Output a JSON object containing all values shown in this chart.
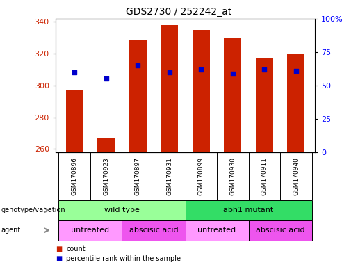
{
  "title": "GDS2730 / 252242_at",
  "samples": [
    "GSM170896",
    "GSM170923",
    "GSM170897",
    "GSM170931",
    "GSM170899",
    "GSM170930",
    "GSM170911",
    "GSM170940"
  ],
  "count_values": [
    297,
    267,
    329,
    338,
    335,
    330,
    317,
    320
  ],
  "percentile_values": [
    60,
    55,
    65,
    60,
    62,
    59,
    62,
    61
  ],
  "y_min": 258,
  "y_max": 342,
  "y_ticks": [
    260,
    280,
    300,
    320,
    340
  ],
  "y2_ticks": [
    0,
    25,
    50,
    75,
    100
  ],
  "bar_color": "#CC2200",
  "dot_color": "#0000CC",
  "genotype_groups": [
    {
      "label": "wild type",
      "start": 0,
      "end": 3,
      "color": "#99FF99"
    },
    {
      "label": "abh1 mutant",
      "start": 4,
      "end": 7,
      "color": "#33DD66"
    }
  ],
  "agent_groups": [
    {
      "label": "untreated",
      "start": 0,
      "end": 1,
      "color": "#FF99FF"
    },
    {
      "label": "abscisic acid",
      "start": 2,
      "end": 3,
      "color": "#EE55EE"
    },
    {
      "label": "untreated",
      "start": 4,
      "end": 5,
      "color": "#FF99FF"
    },
    {
      "label": "abscisic acid",
      "start": 6,
      "end": 7,
      "color": "#EE55EE"
    }
  ],
  "legend_count_color": "#CC2200",
  "legend_dot_color": "#0000CC",
  "bar_width": 0.55,
  "background_color": "#ffffff",
  "tick_label_color_left": "#CC2200",
  "tick_label_color_right": "#0000FF",
  "tick_box_color": "#D8D8D8"
}
